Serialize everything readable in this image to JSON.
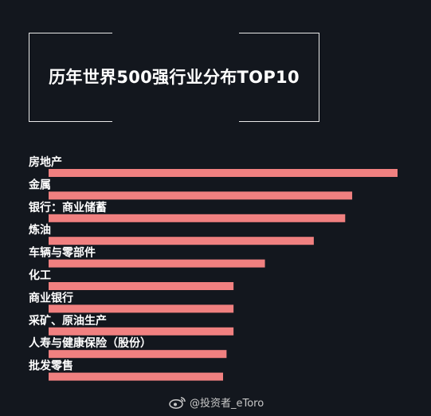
{
  "colors": {
    "background": "#13171e",
    "bar": "#f08080",
    "text": "#ffffff",
    "frame": "#e8e8e8"
  },
  "watermark": {
    "icon": "weibo-logo-icon",
    "text": "@投资者_eToro"
  },
  "chart_data": {
    "type": "bar",
    "orientation": "horizontal",
    "title": "历年世界500强行业分布TOP10",
    "xlabel": "",
    "ylabel": "",
    "axes_visible": false,
    "grid": false,
    "categories": [
      "房地产",
      "金属",
      "银行：商业储蓄",
      "炼油",
      "车辆与零部件",
      "化工",
      "商业银行",
      "采矿、原油生产",
      "人寿与健康保险（股份）",
      "批发零售"
    ],
    "values": [
      100,
      87,
      85,
      76,
      62,
      53,
      53,
      53,
      51,
      50
    ]
  }
}
